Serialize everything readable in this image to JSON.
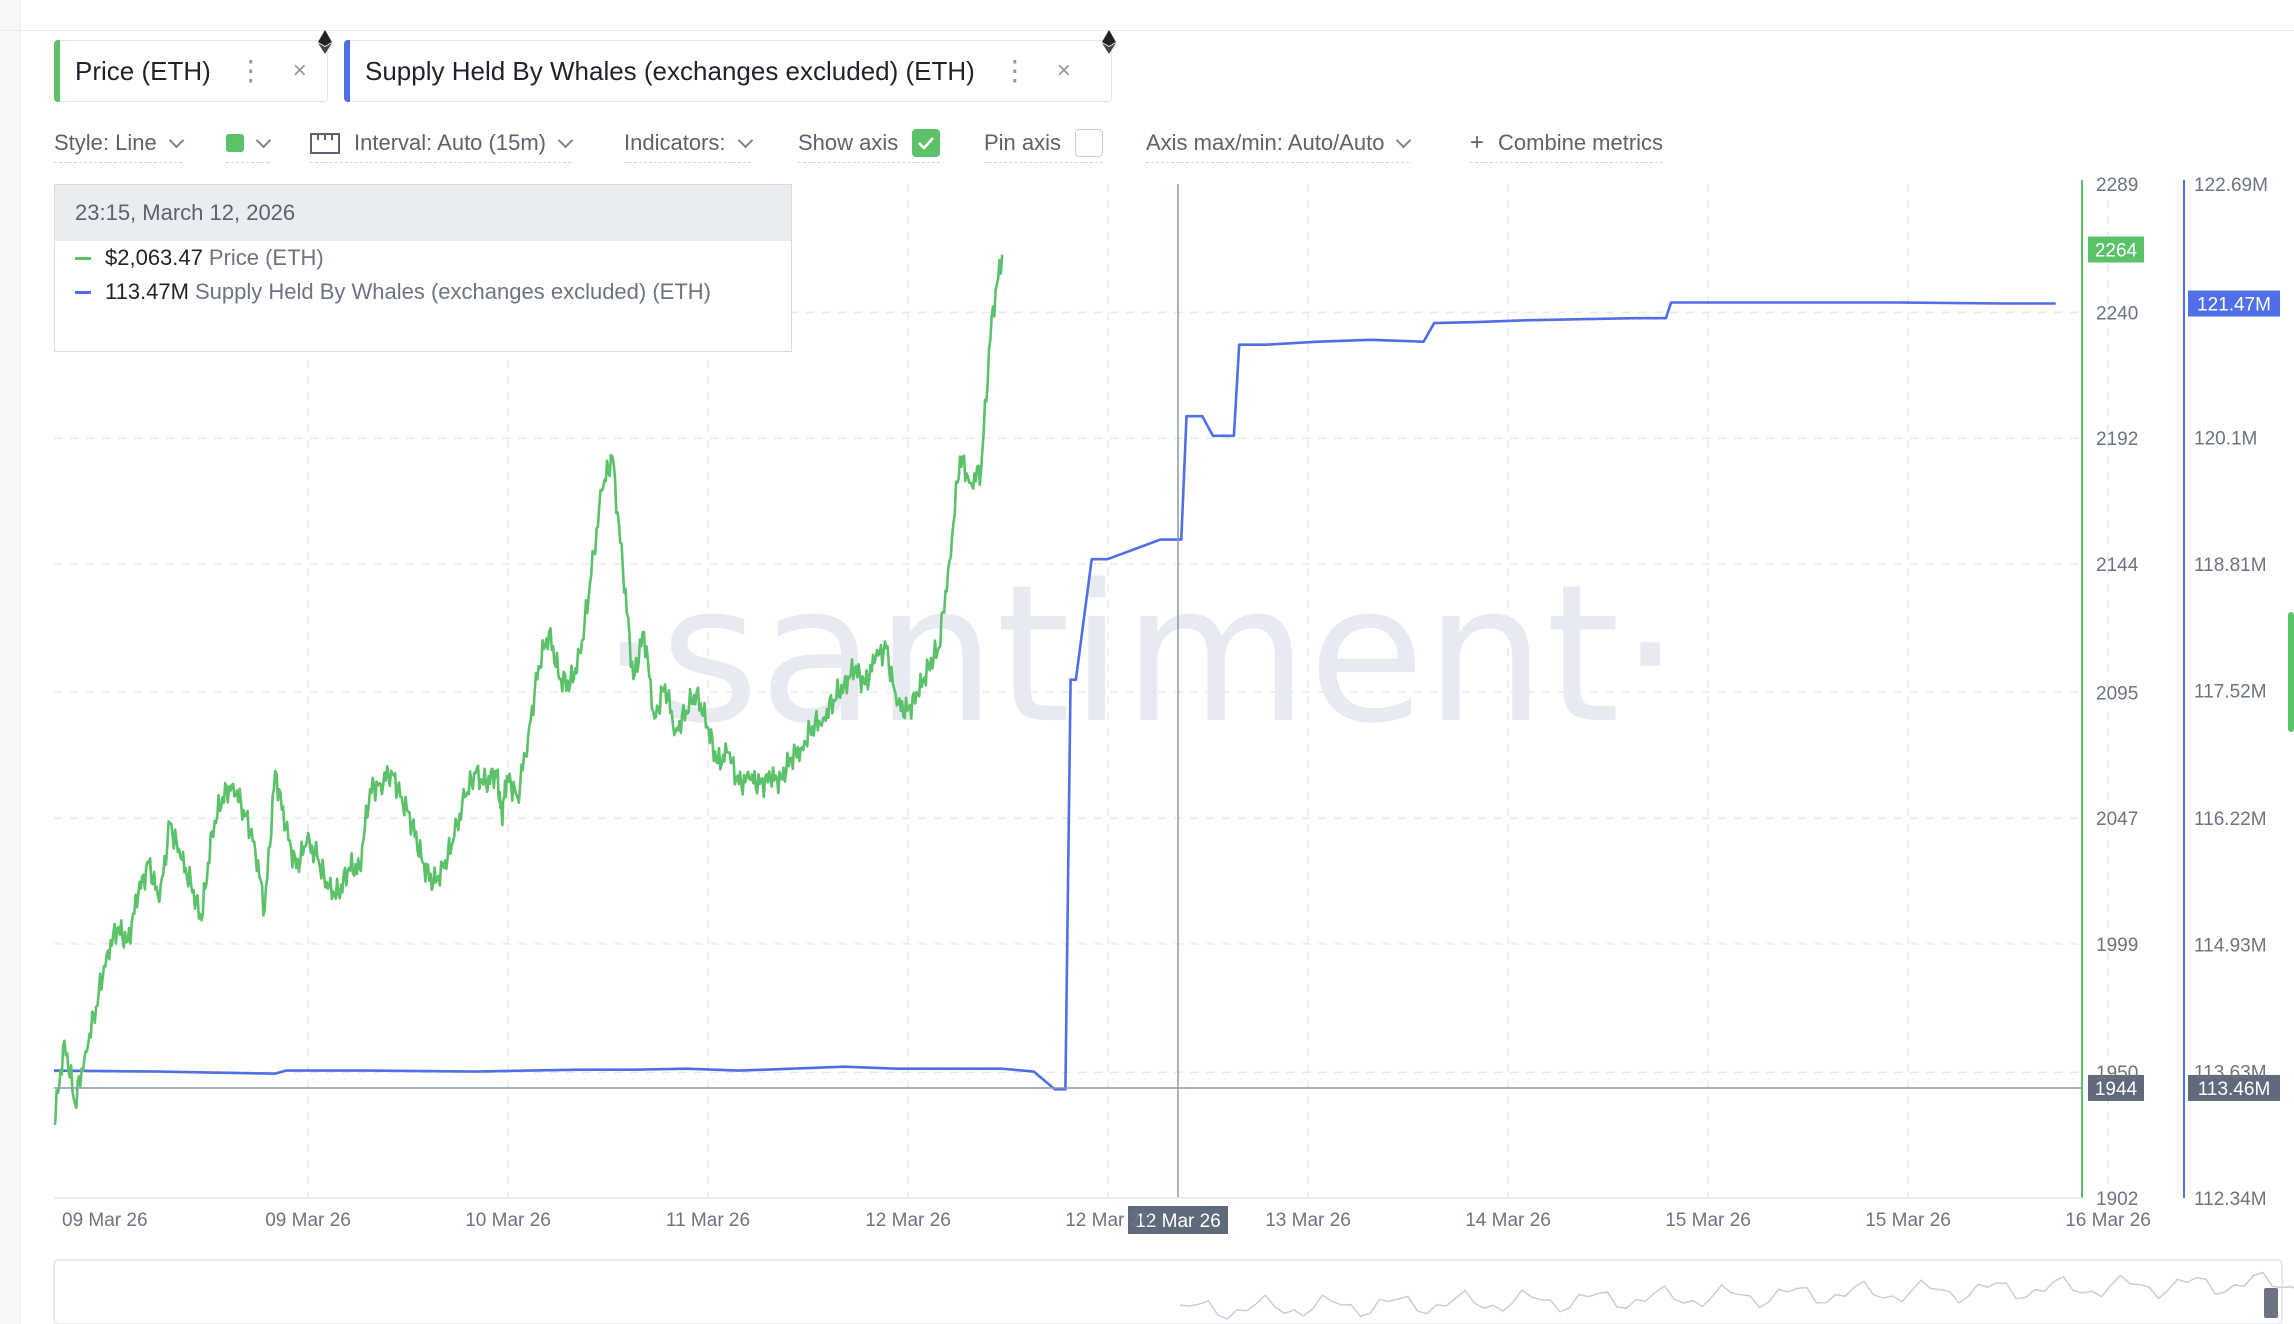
{
  "metrics": [
    {
      "label": "Price (ETH)",
      "color": "#5bc26a"
    },
    {
      "label": "Supply Held By Whales (exchanges excluded) (ETH)",
      "color": "#4f6ee8"
    }
  ],
  "toolbar": {
    "style": "Style: Line",
    "interval": "Interval: Auto (15m)",
    "indicators": "Indicators:",
    "show_axis": "Show axis",
    "pin_axis": "Pin axis",
    "axis_maxmin": "Axis max/min: Auto/Auto",
    "combine_plus": "+",
    "combine": "Combine metrics",
    "swatch_color": "#5bc26a"
  },
  "tooltip": {
    "time": "23:15, March 12, 2026",
    "price_value": "$2,063.47",
    "price_name": "Price (ETH)",
    "whale_value": "113.47M",
    "whale_name": "Supply Held By Whales (exchanges excluded) (ETH)"
  },
  "watermark": "·santiment·",
  "chart_data": {
    "type": "line",
    "x_ticks": [
      "09 Mar 26",
      "09 Mar 26",
      "10 Mar 26",
      "11 Mar 26",
      "12 Mar 26",
      "12 Mar 26",
      "13 Mar 26",
      "14 Mar 26",
      "15 Mar 26",
      "15 Mar 26",
      "16 Mar 26"
    ],
    "crosshair_label": "12 Mar 26",
    "price_axis": {
      "ticks": [
        "2289",
        "2240",
        "2192",
        "2144",
        "2095",
        "2047",
        "1999",
        "1950",
        "1902"
      ],
      "range": [
        1902,
        2289
      ],
      "current_label": "2264",
      "crosshair_label": "1944",
      "color": "#5bc26a"
    },
    "whale_axis": {
      "ticks": [
        "122.69M",
        "120.1M",
        "118.81M",
        "117.52M",
        "116.22M",
        "114.93M",
        "113.63M",
        "112.34M"
      ],
      "range": [
        112.34,
        122.69
      ],
      "current_label": "121.47M",
      "crosshair_label": "113.46M",
      "color": "#4f6ee8"
    },
    "series": [
      {
        "name": "Price (ETH)",
        "axis": "left",
        "color": "#5bc26a",
        "points": [
          [
            0,
            1930
          ],
          [
            0.02,
            1962
          ],
          [
            0.04,
            1938
          ],
          [
            0.06,
            1958
          ],
          [
            0.08,
            1975
          ],
          [
            0.1,
            1995
          ],
          [
            0.12,
            2005
          ],
          [
            0.14,
            2000
          ],
          [
            0.16,
            2018
          ],
          [
            0.18,
            2030
          ],
          [
            0.2,
            2015
          ],
          [
            0.22,
            2045
          ],
          [
            0.24,
            2032
          ],
          [
            0.26,
            2022
          ],
          [
            0.28,
            2008
          ],
          [
            0.3,
            2042
          ],
          [
            0.32,
            2055
          ],
          [
            0.34,
            2060
          ],
          [
            0.36,
            2050
          ],
          [
            0.38,
            2038
          ],
          [
            0.4,
            2012
          ],
          [
            0.42,
            2065
          ],
          [
            0.44,
            2043
          ],
          [
            0.46,
            2028
          ],
          [
            0.48,
            2038
          ],
          [
            0.5,
            2032
          ],
          [
            0.52,
            2020
          ],
          [
            0.54,
            2018
          ],
          [
            0.56,
            2028
          ],
          [
            0.58,
            2028
          ],
          [
            0.6,
            2058
          ],
          [
            0.62,
            2060
          ],
          [
            0.64,
            2065
          ],
          [
            0.66,
            2055
          ],
          [
            0.68,
            2045
          ],
          [
            0.7,
            2030
          ],
          [
            0.72,
            2022
          ],
          [
            0.74,
            2028
          ],
          [
            0.76,
            2040
          ],
          [
            0.78,
            2055
          ],
          [
            0.8,
            2064
          ],
          [
            0.82,
            2060
          ],
          [
            0.84,
            2065
          ],
          [
            0.85,
            2048
          ],
          [
            0.86,
            2063
          ],
          [
            0.88,
            2055
          ],
          [
            0.9,
            2078
          ],
          [
            0.92,
            2105
          ],
          [
            0.94,
            2118
          ],
          [
            0.96,
            2100
          ],
          [
            0.98,
            2098
          ],
          [
            1.0,
            2110
          ],
          [
            1.02,
            2140
          ],
          [
            1.04,
            2172
          ],
          [
            1.06,
            2185
          ],
          [
            1.08,
            2142
          ],
          [
            1.1,
            2100
          ],
          [
            1.12,
            2118
          ],
          [
            1.14,
            2085
          ],
          [
            1.16,
            2098
          ],
          [
            1.18,
            2080
          ],
          [
            1.2,
            2088
          ],
          [
            1.22,
            2095
          ],
          [
            1.24,
            2082
          ],
          [
            1.26,
            2068
          ],
          [
            1.28,
            2072
          ],
          [
            1.3,
            2060
          ],
          [
            1.32,
            2062
          ],
          [
            1.34,
            2060
          ],
          [
            1.36,
            2062
          ],
          [
            1.38,
            2062
          ],
          [
            1.4,
            2070
          ],
          [
            1.42,
            2074
          ],
          [
            1.44,
            2082
          ],
          [
            1.46,
            2085
          ],
          [
            1.48,
            2092
          ],
          [
            1.5,
            2098
          ],
          [
            1.52,
            2104
          ],
          [
            1.54,
            2098
          ],
          [
            1.56,
            2108
          ],
          [
            1.58,
            2112
          ],
          [
            1.6,
            2090
          ],
          [
            1.62,
            2088
          ],
          [
            1.64,
            2094
          ],
          [
            1.66,
            2105
          ],
          [
            1.68,
            2112
          ],
          [
            1.7,
            2145
          ],
          [
            1.72,
            2185
          ],
          [
            1.74,
            2175
          ],
          [
            1.76,
            2180
          ],
          [
            1.78,
            2238
          ],
          [
            1.8,
            2262
          ]
        ],
        "note": "x in days since 09 Mar 26 00:00 label position"
      },
      {
        "name": "Supply Held By Whales (exchanges excluded) (ETH)",
        "axis": "right",
        "color": "#4f6ee8",
        "points": [
          [
            0,
            113.64
          ],
          [
            0.2,
            113.63
          ],
          [
            0.3,
            113.62
          ],
          [
            0.42,
            113.61
          ],
          [
            0.44,
            113.64
          ],
          [
            0.6,
            113.64
          ],
          [
            0.8,
            113.63
          ],
          [
            0.9,
            113.64
          ],
          [
            1.0,
            113.65
          ],
          [
            1.1,
            113.65
          ],
          [
            1.2,
            113.66
          ],
          [
            1.3,
            113.64
          ],
          [
            1.4,
            113.66
          ],
          [
            1.5,
            113.68
          ],
          [
            1.6,
            113.66
          ],
          [
            1.7,
            113.66
          ],
          [
            1.8,
            113.66
          ],
          [
            1.86,
            113.63
          ],
          [
            1.9,
            113.45
          ],
          [
            1.92,
            113.45
          ],
          [
            1.93,
            117.63
          ],
          [
            1.94,
            117.63
          ],
          [
            1.97,
            118.86
          ],
          [
            2.0,
            118.86
          ],
          [
            2.1,
            119.06
          ],
          [
            2.14,
            119.06
          ],
          [
            2.15,
            120.32
          ],
          [
            2.18,
            120.32
          ],
          [
            2.2,
            120.12
          ],
          [
            2.24,
            120.12
          ],
          [
            2.25,
            121.05
          ],
          [
            2.3,
            121.05
          ],
          [
            2.4,
            121.08
          ],
          [
            2.5,
            121.1
          ],
          [
            2.6,
            121.08
          ],
          [
            2.62,
            121.27
          ],
          [
            2.7,
            121.28
          ],
          [
            2.8,
            121.3
          ],
          [
            2.9,
            121.31
          ],
          [
            3.0,
            121.32
          ],
          [
            3.06,
            121.32
          ],
          [
            3.07,
            121.48
          ],
          [
            3.2,
            121.48
          ],
          [
            3.5,
            121.48
          ],
          [
            3.7,
            121.47
          ],
          [
            3.72,
            121.47
          ],
          [
            3.8,
            121.47
          ]
        ],
        "note": "x in days since 09 Mar 26 00:00 label position"
      }
    ],
    "grid": true,
    "legend": "top-left"
  }
}
